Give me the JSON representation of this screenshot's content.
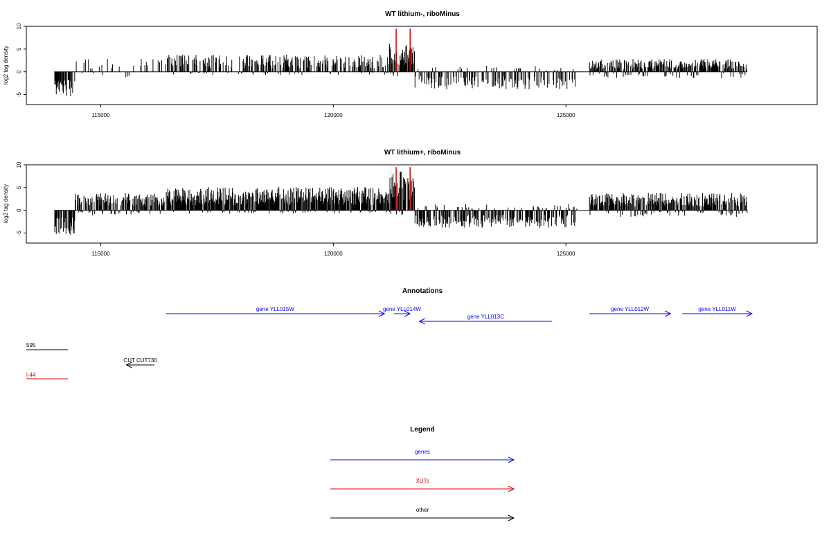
{
  "colors": {
    "axis": "#000000",
    "bars": "#000000",
    "genes": "#0000ff",
    "xuts": "#dd0000",
    "other": "#000000"
  },
  "chart_data": [
    {
      "type": "bar",
      "title": "WT lithium-, riboMinus",
      "ylabel": "log2 tag density",
      "xlim": [
        113400,
        130400
      ],
      "ylim": [
        -7.2,
        10
      ],
      "x_ticks": [
        115000,
        120000,
        125000
      ],
      "y_ticks": [
        -5,
        0,
        5,
        10
      ],
      "x_tick_labels": [
        "115000",
        "120000",
        "125000"
      ],
      "y_tick_labels": [
        "-5",
        "0",
        "5",
        "10"
      ],
      "data_range": [
        114000,
        128900
      ],
      "highlights": [
        {
          "x": 121350,
          "value": 9.5
        },
        {
          "x": 121650,
          "value": 9.5
        }
      ]
    },
    {
      "type": "bar",
      "title": "WT lithium+, riboMinus",
      "ylabel": "log2 tag density",
      "xlim": [
        113400,
        130400
      ],
      "ylim": [
        -7.2,
        10
      ],
      "x_ticks": [
        115000,
        120000,
        125000
      ],
      "y_ticks": [
        -5,
        0,
        5,
        10
      ],
      "x_tick_labels": [
        "115000",
        "120000",
        "125000"
      ],
      "y_tick_labels": [
        "-5",
        "0",
        "5",
        "10"
      ],
      "data_range": [
        114000,
        128900
      ],
      "highlights": [
        {
          "x": 121350,
          "value": 9.5
        },
        {
          "x": 121650,
          "value": 9.5
        }
      ]
    }
  ],
  "annotations": {
    "title": "Annotations",
    "genes": [
      {
        "label": "gene YLL015W",
        "start": 116400,
        "end": 121100,
        "strand": "+"
      },
      {
        "label": "gene YLL014W",
        "start": 121300,
        "end": 121650,
        "strand": "+"
      },
      {
        "label": "gene YLL013C",
        "start": 121850,
        "end": 124700,
        "strand": "-"
      },
      {
        "label": "gene YLL012W",
        "start": 125500,
        "end": 127250,
        "strand": "+"
      },
      {
        "label": "gene YLL011W",
        "start": 127500,
        "end": 129000,
        "strand": "+"
      }
    ],
    "other": [
      {
        "label": "595",
        "start": 113400,
        "end": 114300,
        "strand": "none"
      },
      {
        "label": "CUT CUT730",
        "start": 115550,
        "end": 116150,
        "strand": "-"
      }
    ],
    "xuts": [
      {
        "label": "l-44",
        "start": 113400,
        "end": 114300,
        "strand": "none"
      }
    ]
  },
  "legend": {
    "title": "Legend",
    "items": [
      {
        "label": "genes",
        "color": "#0000ff"
      },
      {
        "label": "XUTs",
        "color": "#dd0000"
      },
      {
        "label": "other",
        "color": "#000000"
      }
    ]
  }
}
